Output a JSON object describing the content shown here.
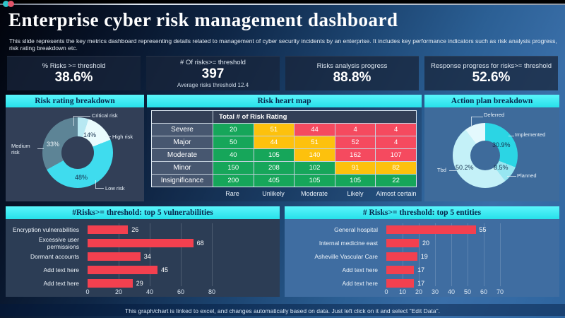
{
  "header": {
    "title": "Enterprise cyber risk management dashboard",
    "subtitle": "This slide represents the key metrics dashboard representing details related to management of cyber security incidents by an enterprise. It includes key performance indicators such as risk analysis progress, risk rating breakdown etc."
  },
  "window_dots": {
    "teal": "#2fc4c9",
    "pink": "#e2556a"
  },
  "kpis": [
    {
      "label": "% Risks >= threshold",
      "value": "38.6%",
      "note": ""
    },
    {
      "label": "# Of risks>= threshold",
      "value": "397",
      "note": "Average risks threshold 12.4"
    },
    {
      "label": "Risks analysis progress",
      "value": "88.8%",
      "note": ""
    },
    {
      "label": "Response progress for risks>= threshold",
      "value": "52.6%",
      "note": ""
    }
  ],
  "chart_data": [
    {
      "type": "pie",
      "title": "Risk rating breakdown",
      "legend_position": "callout-labels",
      "slices": [
        {
          "label": "Critical risk",
          "value": 5,
          "color": "#b7e8f2",
          "pct_text": ""
        },
        {
          "label": "High risk",
          "value": 14,
          "color": "#e9fbfd",
          "pct_text": "14%"
        },
        {
          "label": "Low risk",
          "value": 48,
          "color": "#3fdcee",
          "pct_text": "48%"
        },
        {
          "label": "Medium risk",
          "value": 33,
          "color": "#5d8496",
          "pct_text": "33%"
        }
      ]
    },
    {
      "type": "heatmap",
      "title": "Risk heart map",
      "corner_header": "Total # of Risk Rating",
      "row_labels": [
        "Severe",
        "Major",
        "Moderate",
        "Minor",
        "Insignificance"
      ],
      "col_labels": [
        "Rare",
        "Unlikely",
        "Moderate",
        "Likely",
        "Almost certain"
      ],
      "values": [
        [
          20,
          51,
          44,
          4,
          4
        ],
        [
          50,
          44,
          51,
          52,
          4
        ],
        [
          40,
          105,
          140,
          162,
          107
        ],
        [
          150,
          208,
          102,
          91,
          82
        ],
        [
          200,
          405,
          105,
          105,
          22
        ]
      ],
      "cell_colors": [
        [
          "green",
          "yellow",
          "red",
          "red",
          "red"
        ],
        [
          "green",
          "yellow",
          "yellow",
          "red",
          "red"
        ],
        [
          "green",
          "green",
          "yellow",
          "red",
          "red"
        ],
        [
          "green",
          "green",
          "green",
          "yellow",
          "yellow"
        ],
        [
          "green",
          "green",
          "green",
          "green",
          "green"
        ]
      ],
      "palette": {
        "green": "#16a65a",
        "yellow": "#fdc10d",
        "red": "#f54a5f"
      }
    },
    {
      "type": "pie",
      "title": "Action plan breakdown",
      "legend_position": "callout-labels",
      "slices": [
        {
          "label": "Implemented",
          "value": 30.9,
          "color": "#2bd5e4",
          "pct_text": "30.9%"
        },
        {
          "label": "Planned",
          "value": 8.5,
          "color": "#97e6f1",
          "pct_text": "8.5%"
        },
        {
          "label": "Tbd",
          "value": 50.2,
          "color": "#c4f1f8",
          "pct_text": "50.2%"
        },
        {
          "label": "Deferred",
          "value": 10.4,
          "color": "#e4f9fd",
          "pct_text": ""
        }
      ]
    },
    {
      "type": "bar",
      "orientation": "horizontal",
      "title": "#Risks>= threshold: top 5 vulnerabilities",
      "categories": [
        "Encryption vulnerabilities",
        "Excessive user permissions",
        "Dormant accounts",
        "Add text here",
        "Add text here"
      ],
      "values": [
        26,
        68,
        34,
        45,
        29
      ],
      "xlim": [
        0,
        80
      ],
      "xticks": [
        0,
        20,
        40,
        60,
        80
      ],
      "grid": true,
      "bar_color": "#f3404f"
    },
    {
      "type": "bar",
      "orientation": "horizontal",
      "title": "# Risks>= threshold: top 5 entities",
      "categories": [
        "General hospital",
        "Internal medicine east",
        "Asheville Vascular Care",
        "Add text here",
        "Add text here"
      ],
      "values": [
        55,
        20,
        19,
        17,
        17
      ],
      "xlim": [
        0,
        70
      ],
      "xticks": [
        0,
        10,
        20,
        30,
        40,
        50,
        60,
        70
      ],
      "grid": true,
      "bar_color": "#f3404f"
    }
  ],
  "footer": {
    "text": "This graph/chart is linked to excel, and changes automatically based on data. Just left click on it and select \"Edit Data\"."
  }
}
